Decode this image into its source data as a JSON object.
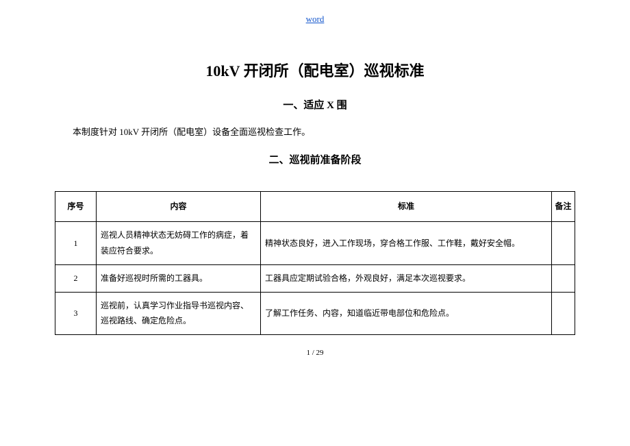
{
  "header_link": "word",
  "title": "10kV 开闭所（配电室）巡视标准",
  "section1_heading": "一、适应 X 围",
  "section1_para": "本制度针对 10kV 开闭所（配电室）设备全面巡视检查工作。",
  "section2_heading": "二、巡视前准备阶段",
  "table": {
    "columns": [
      "序号",
      "内容",
      "标准",
      "备注"
    ],
    "rows": [
      {
        "num": "1",
        "content": "巡视人员精神状态无妨碍工作的病症，着装应符合要求。",
        "standard": "精神状态良好，进入工作现场，穿合格工作服、工作鞋，戴好安全帽。",
        "note": ""
      },
      {
        "num": "2",
        "content": "准备好巡视时所需的工器具。",
        "standard": "工器具应定期试验合格，外观良好，满足本次巡视要求。",
        "note": ""
      },
      {
        "num": "3",
        "content": "巡视前，认真学习作业指导书巡视内容、巡视路线、确定危险点。",
        "standard": "了解工作任务、内容，知道临近带电部位和危险点。",
        "note": ""
      }
    ]
  },
  "page_num": "1 / 29",
  "colors": {
    "link": "#1155cc",
    "text": "#000000",
    "border": "#000000",
    "background": "#ffffff"
  },
  "fontsizes": {
    "header_link": 13,
    "title": 22,
    "section_heading": 15,
    "para": 13,
    "table": 12,
    "page_num": 11
  }
}
